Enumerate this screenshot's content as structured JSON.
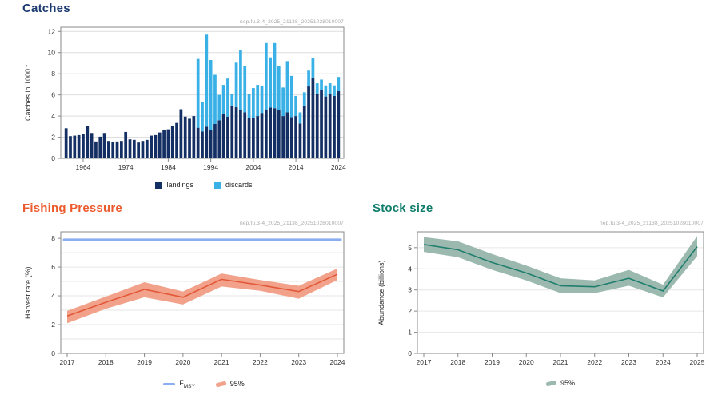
{
  "watermark": "nep.fu.3-4_2025_21138_20251028010007",
  "colors": {
    "landings_navy": "#132f63",
    "discards_lightblue": "#3ab1e6",
    "catches_title": "#1b3a70",
    "fishing_title_orange": "#eb5b2d",
    "harvest_line": "#e2593a",
    "harvest_band": "#f2a28a",
    "fmsy_blue": "#8aaef0",
    "stock_title_teal": "#107c6b",
    "stock_line": "#1f7e6d",
    "stock_band": "#9cb9af",
    "plot_border": "#8a8a8a",
    "gridline": "#dedede",
    "tick_text": "#303030"
  },
  "catches": {
    "title": "Catches",
    "legend": {
      "landings": "landings",
      "discards": "discards"
    }
  },
  "fishing_pressure": {
    "title": "Fishing Pressure",
    "legend": {
      "fmsy_main": "F",
      "fmsy_sub": "MSY",
      "band": "95%"
    }
  },
  "stock_size": {
    "title": "Stock size",
    "legend": {
      "band": "95%"
    }
  },
  "chart_data": [
    {
      "id": "catches",
      "type": "bar",
      "stacked": true,
      "title": "Catches",
      "xlabel": "",
      "ylabel": "Catches in 1000 t",
      "ylim": [
        0,
        12.4
      ],
      "yticks": [
        0,
        2,
        4,
        6,
        8,
        10,
        12
      ],
      "xticks": [
        1964,
        1974,
        1984,
        1994,
        2004,
        2014,
        2024
      ],
      "legend_position": "bottom",
      "grid": true,
      "categories": [
        1960,
        1961,
        1962,
        1963,
        1964,
        1965,
        1966,
        1967,
        1968,
        1969,
        1970,
        1971,
        1972,
        1973,
        1974,
        1975,
        1976,
        1977,
        1978,
        1979,
        1980,
        1981,
        1982,
        1983,
        1984,
        1985,
        1986,
        1987,
        1988,
        1989,
        1990,
        1991,
        1992,
        1993,
        1994,
        1995,
        1996,
        1997,
        1998,
        1999,
        2000,
        2001,
        2002,
        2003,
        2004,
        2005,
        2006,
        2007,
        2008,
        2009,
        2010,
        2011,
        2012,
        2013,
        2014,
        2015,
        2016,
        2017,
        2018,
        2019,
        2020,
        2021,
        2022,
        2023,
        2024
      ],
      "series": [
        {
          "name": "landings",
          "color": "#132f63",
          "values": [
            2.85,
            2.1,
            2.15,
            2.2,
            2.3,
            3.1,
            2.4,
            1.6,
            2.05,
            2.4,
            1.65,
            1.55,
            1.6,
            1.65,
            2.5,
            1.8,
            1.75,
            1.5,
            1.65,
            1.75,
            2.15,
            2.2,
            2.45,
            2.65,
            2.75,
            3.05,
            3.35,
            4.65,
            3.95,
            3.75,
            4.0,
            2.9,
            2.55,
            3.0,
            2.7,
            3.25,
            3.6,
            4.2,
            3.95,
            5.0,
            4.85,
            4.55,
            4.35,
            3.85,
            3.8,
            4.0,
            4.3,
            4.6,
            4.8,
            4.75,
            4.55,
            4.0,
            4.35,
            3.9,
            4.0,
            3.3,
            5.0,
            6.8,
            7.65,
            6.05,
            6.5,
            5.85,
            6.1,
            5.9,
            6.35
          ]
        },
        {
          "name": "discards",
          "color": "#3ab1e6",
          "values": [
            0,
            0,
            0,
            0,
            0,
            0,
            0,
            0,
            0,
            0,
            0,
            0,
            0,
            0,
            0,
            0,
            0,
            0,
            0,
            0,
            0,
            0,
            0,
            0,
            0,
            0,
            0,
            0,
            0,
            0,
            0,
            6.5,
            2.75,
            8.7,
            6.6,
            4.65,
            2.4,
            2.75,
            3.6,
            1.1,
            4.2,
            5.7,
            4.4,
            2.25,
            2.85,
            2.95,
            2.55,
            6.3,
            4.75,
            6.15,
            4.15,
            2.7,
            4.85,
            3.9,
            1.9,
            1.05,
            1.25,
            1.5,
            1.8,
            1.05,
            0.95,
            1.05,
            1.0,
            1.0,
            1.35
          ]
        }
      ]
    },
    {
      "id": "fishing_pressure",
      "type": "line",
      "title": "Fishing Pressure",
      "xlabel": "",
      "ylabel": "Harvest rate (%)",
      "ylim": [
        0,
        8.45
      ],
      "yticks": [
        0,
        2,
        4,
        6,
        8
      ],
      "gridticks": [
        1,
        2,
        3,
        4,
        5,
        6,
        7
      ],
      "x": [
        2017,
        2018,
        2019,
        2020,
        2021,
        2022,
        2023,
        2024
      ],
      "series": [
        {
          "name": "harvest_rate_95ci",
          "line_color": "#e2593a",
          "band_color": "#f2a28a",
          "values": [
            2.6,
            3.55,
            4.45,
            3.9,
            5.15,
            4.75,
            4.3,
            5.5
          ],
          "lo": [
            2.1,
            3.1,
            3.9,
            3.4,
            4.65,
            4.35,
            3.8,
            5.1
          ],
          "hi": [
            2.95,
            3.95,
            4.95,
            4.3,
            5.55,
            5.1,
            4.7,
            5.9
          ]
        }
      ],
      "reference_line": {
        "name": "FMSY",
        "value": 7.9,
        "color": "#8aaef0"
      },
      "legend_position": "bottom",
      "grid": true
    },
    {
      "id": "stock_size",
      "type": "line",
      "title": "Stock size",
      "xlabel": "",
      "ylabel": "Abundance (billions)",
      "ylim": [
        0,
        5.75
      ],
      "yticks": [
        0,
        1,
        2,
        3,
        4,
        5
      ],
      "gridticks": [
        1,
        2,
        3,
        4,
        5
      ],
      "x": [
        2017,
        2018,
        2019,
        2020,
        2021,
        2022,
        2023,
        2024,
        2025
      ],
      "series": [
        {
          "name": "abundance_95ci",
          "line_color": "#1f7e6d",
          "band_color": "#9cb9af",
          "values": [
            5.15,
            4.9,
            4.3,
            3.8,
            3.2,
            3.15,
            3.55,
            2.95,
            5.05
          ],
          "lo": [
            4.8,
            4.55,
            3.95,
            3.45,
            2.85,
            2.85,
            3.2,
            2.65,
            4.6
          ],
          "hi": [
            5.5,
            5.3,
            4.7,
            4.15,
            3.55,
            3.45,
            3.95,
            3.25,
            5.55
          ]
        }
      ],
      "legend_position": "bottom",
      "grid": true
    }
  ]
}
